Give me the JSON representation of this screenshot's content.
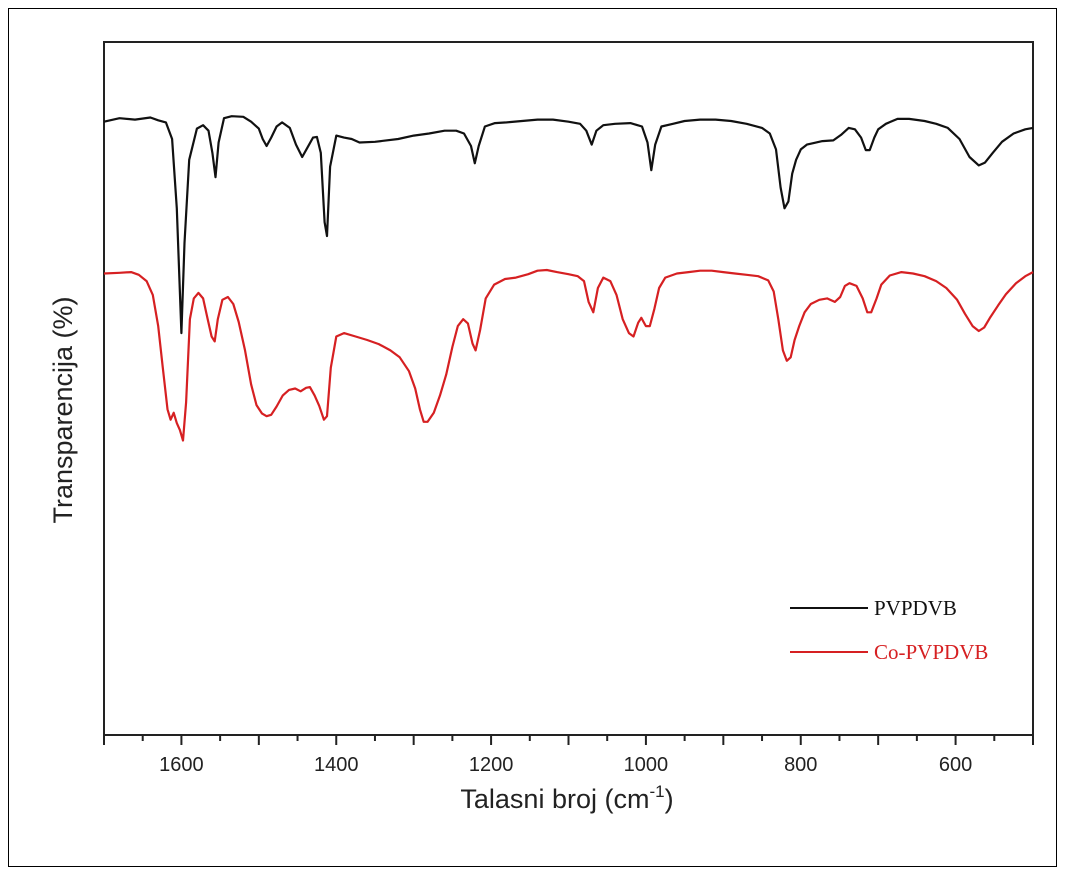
{
  "chart_data": {
    "type": "line",
    "title": "",
    "xlabel": "Talasni broj (cm",
    "xlabel_sup": "-1",
    "xlabel_suffix": ")",
    "ylabel": "Transparencija (%)",
    "xlim": [
      1700,
      500
    ],
    "x_reversed": true,
    "ylim": [
      0,
      1
    ],
    "y_ticks_shown": false,
    "grid": false,
    "legend_position": "bottom-right",
    "x_ticks": [
      {
        "value": 1600,
        "label": "1600"
      },
      {
        "value": 1400,
        "label": "1400"
      },
      {
        "value": 1200,
        "label": "1200"
      },
      {
        "value": 1000,
        "label": "1000"
      },
      {
        "value": 800,
        "label": "800"
      },
      {
        "value": 600,
        "label": "600"
      }
    ],
    "series": [
      {
        "name": "PVPDVB",
        "color": "#111111",
        "points": [
          [
            1700,
            0.885
          ],
          [
            1680,
            0.89
          ],
          [
            1660,
            0.888
          ],
          [
            1640,
            0.891
          ],
          [
            1630,
            0.887
          ],
          [
            1620,
            0.884
          ],
          [
            1612,
            0.86
          ],
          [
            1606,
            0.76
          ],
          [
            1600,
            0.58
          ],
          [
            1596,
            0.71
          ],
          [
            1590,
            0.83
          ],
          [
            1580,
            0.875
          ],
          [
            1572,
            0.88
          ],
          [
            1565,
            0.872
          ],
          [
            1560,
            0.84
          ],
          [
            1556,
            0.805
          ],
          [
            1552,
            0.855
          ],
          [
            1545,
            0.89
          ],
          [
            1535,
            0.893
          ],
          [
            1520,
            0.892
          ],
          [
            1510,
            0.885
          ],
          [
            1500,
            0.875
          ],
          [
            1495,
            0.86
          ],
          [
            1490,
            0.85
          ],
          [
            1484,
            0.862
          ],
          [
            1477,
            0.878
          ],
          [
            1470,
            0.884
          ],
          [
            1460,
            0.876
          ],
          [
            1452,
            0.852
          ],
          [
            1444,
            0.834
          ],
          [
            1437,
            0.848
          ],
          [
            1430,
            0.862
          ],
          [
            1425,
            0.863
          ],
          [
            1420,
            0.84
          ],
          [
            1415,
            0.74
          ],
          [
            1412,
            0.72
          ],
          [
            1408,
            0.82
          ],
          [
            1400,
            0.865
          ],
          [
            1390,
            0.862
          ],
          [
            1380,
            0.86
          ],
          [
            1370,
            0.855
          ],
          [
            1350,
            0.856
          ],
          [
            1320,
            0.86
          ],
          [
            1300,
            0.865
          ],
          [
            1280,
            0.868
          ],
          [
            1260,
            0.872
          ],
          [
            1245,
            0.872
          ],
          [
            1235,
            0.868
          ],
          [
            1226,
            0.85
          ],
          [
            1221,
            0.825
          ],
          [
            1216,
            0.85
          ],
          [
            1208,
            0.878
          ],
          [
            1195,
            0.883
          ],
          [
            1180,
            0.884
          ],
          [
            1160,
            0.886
          ],
          [
            1140,
            0.888
          ],
          [
            1120,
            0.888
          ],
          [
            1100,
            0.885
          ],
          [
            1085,
            0.882
          ],
          [
            1077,
            0.872
          ],
          [
            1070,
            0.852
          ],
          [
            1064,
            0.872
          ],
          [
            1055,
            0.88
          ],
          [
            1040,
            0.882
          ],
          [
            1020,
            0.883
          ],
          [
            1005,
            0.878
          ],
          [
            998,
            0.855
          ],
          [
            993,
            0.815
          ],
          [
            988,
            0.852
          ],
          [
            980,
            0.878
          ],
          [
            965,
            0.882
          ],
          [
            950,
            0.886
          ],
          [
            930,
            0.888
          ],
          [
            910,
            0.888
          ],
          [
            890,
            0.886
          ],
          [
            870,
            0.882
          ],
          [
            850,
            0.876
          ],
          [
            840,
            0.868
          ],
          [
            832,
            0.845
          ],
          [
            826,
            0.79
          ],
          [
            821,
            0.76
          ],
          [
            816,
            0.77
          ],
          [
            811,
            0.81
          ],
          [
            806,
            0.83
          ],
          [
            800,
            0.845
          ],
          [
            792,
            0.852
          ],
          [
            784,
            0.854
          ],
          [
            772,
            0.857
          ],
          [
            758,
            0.858
          ],
          [
            748,
            0.866
          ],
          [
            738,
            0.876
          ],
          [
            730,
            0.874
          ],
          [
            722,
            0.862
          ],
          [
            716,
            0.844
          ],
          [
            711,
            0.844
          ],
          [
            705,
            0.862
          ],
          [
            700,
            0.874
          ],
          [
            690,
            0.882
          ],
          [
            675,
            0.889
          ],
          [
            660,
            0.889
          ],
          [
            640,
            0.886
          ],
          [
            625,
            0.882
          ],
          [
            610,
            0.876
          ],
          [
            595,
            0.86
          ],
          [
            582,
            0.834
          ],
          [
            570,
            0.822
          ],
          [
            562,
            0.826
          ],
          [
            552,
            0.84
          ],
          [
            540,
            0.856
          ],
          [
            525,
            0.868
          ],
          [
            510,
            0.874
          ],
          [
            500,
            0.876
          ]
        ]
      },
      {
        "name": "Co-PVPDVB",
        "color": "#d62022",
        "points": [
          [
            1700,
            0.666
          ],
          [
            1680,
            0.667
          ],
          [
            1665,
            0.668
          ],
          [
            1655,
            0.664
          ],
          [
            1645,
            0.655
          ],
          [
            1637,
            0.635
          ],
          [
            1630,
            0.59
          ],
          [
            1624,
            0.53
          ],
          [
            1618,
            0.47
          ],
          [
            1614,
            0.455
          ],
          [
            1610,
            0.465
          ],
          [
            1606,
            0.45
          ],
          [
            1602,
            0.44
          ],
          [
            1598,
            0.425
          ],
          [
            1594,
            0.48
          ],
          [
            1589,
            0.6
          ],
          [
            1584,
            0.63
          ],
          [
            1578,
            0.638
          ],
          [
            1572,
            0.63
          ],
          [
            1566,
            0.6
          ],
          [
            1561,
            0.575
          ],
          [
            1557,
            0.568
          ],
          [
            1553,
            0.6
          ],
          [
            1547,
            0.628
          ],
          [
            1540,
            0.632
          ],
          [
            1533,
            0.622
          ],
          [
            1526,
            0.596
          ],
          [
            1518,
            0.556
          ],
          [
            1510,
            0.506
          ],
          [
            1503,
            0.476
          ],
          [
            1496,
            0.464
          ],
          [
            1490,
            0.46
          ],
          [
            1484,
            0.462
          ],
          [
            1477,
            0.474
          ],
          [
            1469,
            0.49
          ],
          [
            1461,
            0.498
          ],
          [
            1453,
            0.5
          ],
          [
            1446,
            0.496
          ],
          [
            1439,
            0.501
          ],
          [
            1434,
            0.502
          ],
          [
            1428,
            0.49
          ],
          [
            1422,
            0.475
          ],
          [
            1416,
            0.455
          ],
          [
            1412,
            0.46
          ],
          [
            1407,
            0.53
          ],
          [
            1400,
            0.575
          ],
          [
            1390,
            0.58
          ],
          [
            1375,
            0.575
          ],
          [
            1360,
            0.57
          ],
          [
            1345,
            0.564
          ],
          [
            1330,
            0.555
          ],
          [
            1318,
            0.545
          ],
          [
            1306,
            0.525
          ],
          [
            1298,
            0.5
          ],
          [
            1292,
            0.47
          ],
          [
            1287,
            0.452
          ],
          [
            1282,
            0.452
          ],
          [
            1274,
            0.465
          ],
          [
            1266,
            0.49
          ],
          [
            1258,
            0.52
          ],
          [
            1250,
            0.56
          ],
          [
            1243,
            0.59
          ],
          [
            1236,
            0.6
          ],
          [
            1230,
            0.594
          ],
          [
            1224,
            0.565
          ],
          [
            1220,
            0.555
          ],
          [
            1214,
            0.585
          ],
          [
            1207,
            0.63
          ],
          [
            1196,
            0.65
          ],
          [
            1182,
            0.658
          ],
          [
            1168,
            0.66
          ],
          [
            1152,
            0.665
          ],
          [
            1140,
            0.67
          ],
          [
            1128,
            0.671
          ],
          [
            1115,
            0.668
          ],
          [
            1100,
            0.665
          ],
          [
            1088,
            0.662
          ],
          [
            1080,
            0.655
          ],
          [
            1074,
            0.625
          ],
          [
            1068,
            0.61
          ],
          [
            1062,
            0.645
          ],
          [
            1055,
            0.66
          ],
          [
            1046,
            0.655
          ],
          [
            1038,
            0.635
          ],
          [
            1030,
            0.6
          ],
          [
            1022,
            0.58
          ],
          [
            1016,
            0.575
          ],
          [
            1010,
            0.595
          ],
          [
            1006,
            0.602
          ],
          [
            1000,
            0.59
          ],
          [
            995,
            0.59
          ],
          [
            989,
            0.615
          ],
          [
            983,
            0.645
          ],
          [
            975,
            0.66
          ],
          [
            960,
            0.666
          ],
          [
            945,
            0.668
          ],
          [
            930,
            0.67
          ],
          [
            915,
            0.67
          ],
          [
            900,
            0.668
          ],
          [
            885,
            0.666
          ],
          [
            870,
            0.664
          ],
          [
            855,
            0.662
          ],
          [
            842,
            0.656
          ],
          [
            835,
            0.64
          ],
          [
            829,
            0.6
          ],
          [
            823,
            0.555
          ],
          [
            818,
            0.54
          ],
          [
            813,
            0.545
          ],
          [
            808,
            0.57
          ],
          [
            802,
            0.59
          ],
          [
            795,
            0.61
          ],
          [
            787,
            0.622
          ],
          [
            776,
            0.628
          ],
          [
            766,
            0.63
          ],
          [
            756,
            0.625
          ],
          [
            749,
            0.632
          ],
          [
            743,
            0.648
          ],
          [
            737,
            0.652
          ],
          [
            728,
            0.648
          ],
          [
            720,
            0.63
          ],
          [
            714,
            0.61
          ],
          [
            709,
            0.61
          ],
          [
            702,
            0.63
          ],
          [
            696,
            0.65
          ],
          [
            685,
            0.663
          ],
          [
            670,
            0.668
          ],
          [
            655,
            0.666
          ],
          [
            640,
            0.662
          ],
          [
            625,
            0.655
          ],
          [
            612,
            0.645
          ],
          [
            598,
            0.628
          ],
          [
            588,
            0.608
          ],
          [
            578,
            0.59
          ],
          [
            570,
            0.583
          ],
          [
            563,
            0.588
          ],
          [
            555,
            0.603
          ],
          [
            545,
            0.62
          ],
          [
            535,
            0.636
          ],
          [
            522,
            0.652
          ],
          [
            510,
            0.662
          ],
          [
            500,
            0.668
          ]
        ]
      }
    ]
  }
}
